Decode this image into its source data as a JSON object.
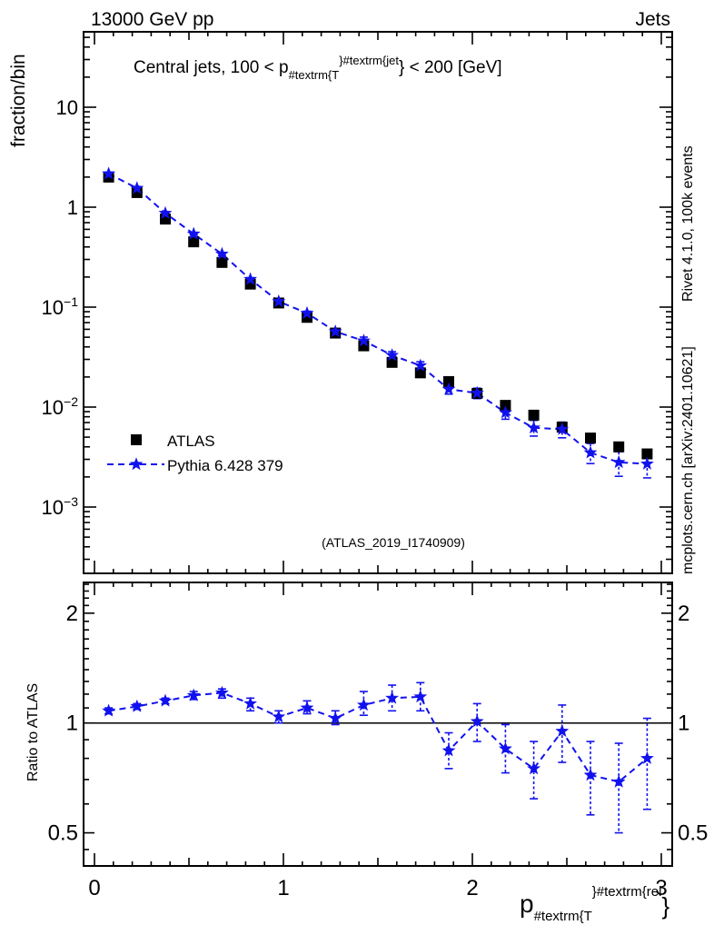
{
  "header": {
    "left": "13000 GeV pp",
    "right": "Jets"
  },
  "panel_title": {
    "prefix": "Central jets, 100 < p",
    "sub": "#textrm{T",
    "brace_mid": "}",
    "sup": "#textrm{jet",
    "brace_end": "}",
    "suffix": " < 200 [GeV]"
  },
  "axis_labels": {
    "y_main": "fraction/bin",
    "y_ratio": "Ratio to ATLAS"
  },
  "x_axis_label": {
    "main": "p",
    "sub": "#textrm{T",
    "brace_mid": "}",
    "sup": "#textrm{rel",
    "brace_end": "}"
  },
  "legend": {
    "entries": [
      {
        "label": "ATLAS",
        "marker": "black-square"
      },
      {
        "label": "Pythia 6.428 379",
        "marker": "blue-star-dashed-line"
      }
    ]
  },
  "watermark": "(ATLAS_2019_I1740909)",
  "side_notes": {
    "top": "Rivet 4.1.0,  100k events",
    "bottom": "mcplots.cern.ch [arXiv:2401.10621]"
  },
  "colors": {
    "atlas": "#000000",
    "pythia": "#1111ee",
    "frame": "#000000",
    "side_text": "#999999",
    "watermark": "#a6a6a6"
  },
  "chart_data": [
    {
      "type": "scatter",
      "title": "Central jets, 100 < pT^jet < 200 [GeV]",
      "xlabel": "pT^rel",
      "ylabel": "fraction/bin",
      "yscale": "log",
      "xlim": [
        -0.058,
        3.058
      ],
      "ylim": [
        0.00022,
        57
      ],
      "x": [
        0.075,
        0.225,
        0.375,
        0.525,
        0.675,
        0.825,
        0.975,
        1.125,
        1.275,
        1.425,
        1.575,
        1.725,
        1.875,
        2.025,
        2.175,
        2.325,
        2.475,
        2.625,
        2.775,
        2.925
      ],
      "series": [
        {
          "name": "ATLAS",
          "values": [
            2.0,
            1.4,
            0.76,
            0.45,
            0.28,
            0.17,
            0.11,
            0.079,
            0.055,
            0.041,
            0.028,
            0.022,
            0.018,
            0.0137,
            0.0104,
            0.0083,
            0.0063,
            0.0049,
            0.004,
            0.0034
          ]
        },
        {
          "name": "Pythia 6.428 379",
          "values": [
            2.16,
            1.55,
            0.87,
            0.54,
            0.34,
            0.19,
            0.114,
            0.087,
            0.057,
            0.046,
            0.033,
            0.026,
            0.0151,
            0.0138,
            0.0088,
            0.0062,
            0.006,
            0.0035,
            0.0028,
            0.0027
          ]
        }
      ]
    },
    {
      "type": "scatter",
      "title": "Ratio to ATLAS",
      "ylabel": "Ratio to ATLAS",
      "yscale": "log",
      "ylim": [
        0.42,
        2.45
      ],
      "yticks_labeled": [
        0.5,
        1,
        2
      ],
      "x": [
        0.075,
        0.225,
        0.375,
        0.525,
        0.675,
        0.825,
        0.975,
        1.125,
        1.275,
        1.425,
        1.575,
        1.725,
        1.875,
        2.025,
        2.175,
        2.325,
        2.475,
        2.625,
        2.775,
        2.925
      ],
      "values": [
        1.08,
        1.11,
        1.15,
        1.19,
        1.21,
        1.13,
        1.04,
        1.1,
        1.03,
        1.12,
        1.17,
        1.18,
        0.84,
        1.01,
        0.85,
        0.75,
        0.95,
        0.72,
        0.69,
        0.8
      ],
      "err_lo": [
        1.06,
        1.09,
        1.13,
        1.16,
        1.17,
        1.08,
        1.0,
        1.06,
        0.99,
        1.05,
        1.08,
        1.08,
        0.75,
        0.89,
        0.73,
        0.62,
        0.78,
        0.56,
        0.5,
        0.58
      ],
      "err_hi": [
        1.1,
        1.13,
        1.17,
        1.22,
        1.24,
        1.17,
        1.08,
        1.15,
        1.08,
        1.22,
        1.27,
        1.29,
        0.94,
        1.13,
        0.99,
        0.89,
        1.12,
        0.89,
        0.88,
        1.03
      ],
      "reference_line": 1
    }
  ],
  "x_tick_labels": [
    "0",
    "1",
    "2",
    "3"
  ]
}
